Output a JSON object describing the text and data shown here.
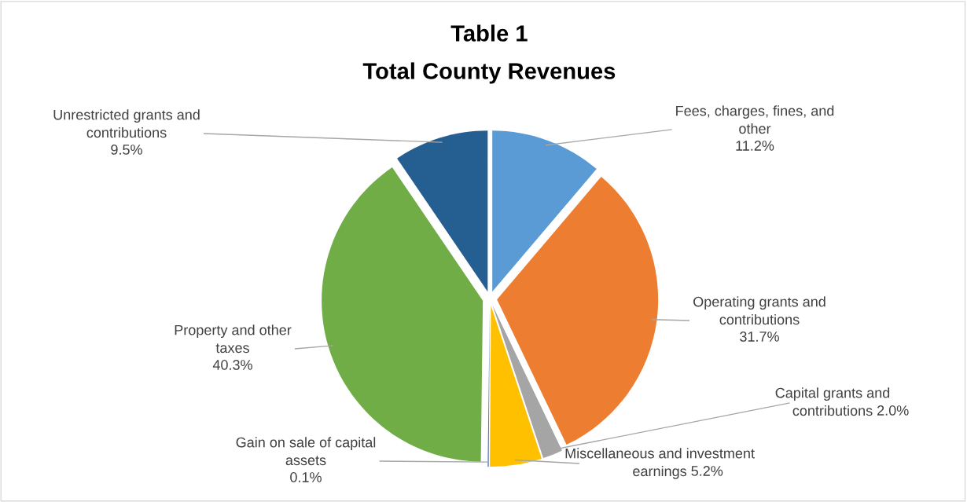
{
  "chart_data": {
    "type": "pie",
    "title": "Table 1",
    "subtitle": "Total County Revenues",
    "categories": [
      "Fees, charges, fines, and other",
      "Operating grants and contributions",
      "Capital grants and contributions",
      "Miscellaneous and investment earnings",
      "Gain on sale of capital assets",
      "Property and other taxes",
      "Unrestricted grants and contributions"
    ],
    "values": [
      11.2,
      31.7,
      2.0,
      5.2,
      0.1,
      40.3,
      9.5
    ],
    "colors": [
      "#5b9bd5",
      "#ed7d31",
      "#a5a5a5",
      "#ffc000",
      "#4472c4",
      "#70ad47",
      "#255e91"
    ],
    "value_labels": [
      "11.2%",
      "31.7%",
      "2.0%",
      "5.2%",
      "0.1%",
      "40.3%",
      "9.5%"
    ],
    "data_labels": true,
    "legend": false
  }
}
